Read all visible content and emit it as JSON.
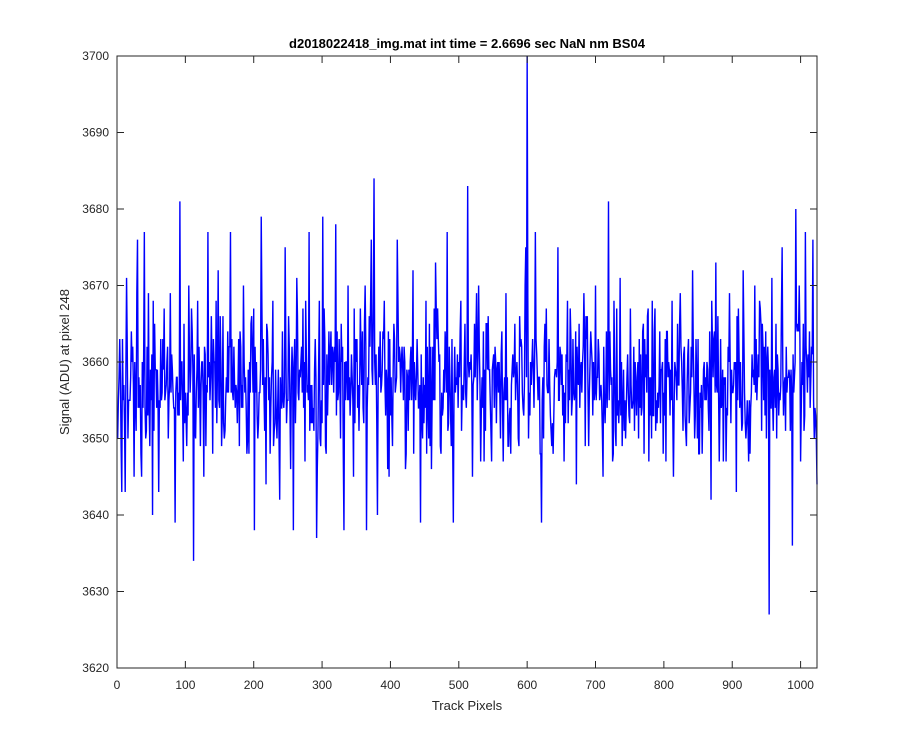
{
  "chart_data": {
    "type": "line",
    "title": "d2018022418_img.mat int time = 2.6696 sec  NaN nm BS04",
    "xlabel": "Track Pixels",
    "ylabel": "Signal (ADU) at pixel 248",
    "xlim": [
      0,
      1024
    ],
    "ylim": [
      3620,
      3700
    ],
    "xticks": [
      0,
      100,
      200,
      300,
      400,
      500,
      600,
      700,
      800,
      900,
      1000
    ],
    "yticks": [
      3620,
      3630,
      3640,
      3650,
      3660,
      3670,
      3680,
      3690,
      3700
    ],
    "grid": false,
    "series": [
      {
        "color": "#0000ff",
        "baseline": 3657,
        "noise_range": [
          3643,
          3672
        ],
        "x_start": 1,
        "x_end": 1024,
        "points": [
          [
            1,
            3650
          ],
          [
            4,
            3663
          ],
          [
            7,
            3643
          ],
          [
            10,
            3657
          ],
          [
            12,
            3643
          ],
          [
            14,
            3671
          ],
          [
            16,
            3650
          ],
          [
            21,
            3664
          ],
          [
            25,
            3645
          ],
          [
            29,
            3669
          ],
          [
            30,
            3676
          ],
          [
            35,
            3648
          ],
          [
            40,
            3677
          ],
          [
            42,
            3650
          ],
          [
            46,
            3669
          ],
          [
            52,
            3640
          ],
          [
            55,
            3665
          ],
          [
            61,
            3643
          ],
          [
            69,
            3667
          ],
          [
            75,
            3650
          ],
          [
            85,
            3639
          ],
          [
            92,
            3681
          ],
          [
            97,
            3647
          ],
          [
            105,
            3670
          ],
          [
            112,
            3634
          ],
          [
            118,
            3668
          ],
          [
            127,
            3645
          ],
          [
            133,
            3677
          ],
          [
            140,
            3648
          ],
          [
            148,
            3672
          ],
          [
            157,
            3650
          ],
          [
            166,
            3677
          ],
          [
            176,
            3652
          ],
          [
            185,
            3670
          ],
          [
            193,
            3648
          ],
          [
            201,
            3638
          ],
          [
            211,
            3679
          ],
          [
            218,
            3644
          ],
          [
            228,
            3668
          ],
          [
            238,
            3642
          ],
          [
            246,
            3675
          ],
          [
            258,
            3638
          ],
          [
            263,
            3671
          ],
          [
            275,
            3647
          ],
          [
            281,
            3677
          ],
          [
            292,
            3637
          ],
          [
            296,
            3668
          ],
          [
            301,
            3679
          ],
          [
            306,
            3648
          ],
          [
            320,
            3678
          ],
          [
            332,
            3638
          ],
          [
            338,
            3670
          ],
          [
            346,
            3645
          ],
          [
            356,
            3667
          ],
          [
            365,
            3638
          ],
          [
            372,
            3676
          ],
          [
            376,
            3684
          ],
          [
            381,
            3640
          ],
          [
            391,
            3668
          ],
          [
            398,
            3645
          ],
          [
            410,
            3676
          ],
          [
            422,
            3646
          ],
          [
            433,
            3672
          ],
          [
            444,
            3639
          ],
          [
            452,
            3668
          ],
          [
            460,
            3646
          ],
          [
            466,
            3673
          ],
          [
            474,
            3648
          ],
          [
            483,
            3677
          ],
          [
            492,
            3639
          ],
          [
            500,
            3660
          ],
          [
            513,
            3683
          ],
          [
            520,
            3645
          ],
          [
            529,
            3670
          ],
          [
            537,
            3647
          ],
          [
            550,
            3660
          ],
          [
            565,
            3647
          ],
          [
            577,
            3657
          ],
          [
            587,
            3650
          ],
          [
            597,
            3670
          ],
          [
            598,
            3675
          ],
          [
            600,
            3700
          ],
          [
            602,
            3650
          ],
          [
            605,
            3660
          ],
          [
            612,
            3677
          ],
          [
            619,
            3648
          ],
          [
            621,
            3639
          ],
          [
            628,
            3667
          ],
          [
            638,
            3648
          ],
          [
            645,
            3675
          ],
          [
            654,
            3647
          ],
          [
            663,
            3667
          ],
          [
            672,
            3644
          ],
          [
            683,
            3669
          ],
          [
            690,
            3649
          ],
          [
            700,
            3670
          ],
          [
            711,
            3645
          ],
          [
            719,
            3681
          ],
          [
            726,
            3648
          ],
          [
            736,
            3671
          ],
          [
            744,
            3650
          ],
          [
            751,
            3667
          ],
          [
            760,
            3653
          ],
          [
            770,
            3665
          ],
          [
            778,
            3647
          ],
          [
            787,
            3667
          ],
          [
            795,
            3652
          ],
          [
            805,
            3664
          ],
          [
            814,
            3645
          ],
          [
            824,
            3669
          ],
          [
            833,
            3649
          ],
          [
            842,
            3672
          ],
          [
            851,
            3648
          ],
          [
            859,
            3660
          ],
          [
            869,
            3642
          ],
          [
            876,
            3673
          ],
          [
            887,
            3647
          ],
          [
            896,
            3669
          ],
          [
            906,
            3643
          ],
          [
            916,
            3672
          ],
          [
            926,
            3648
          ],
          [
            933,
            3670
          ],
          [
            943,
            3651
          ],
          [
            951,
            3660
          ],
          [
            954,
            3627
          ],
          [
            958,
            3671
          ],
          [
            965,
            3650
          ],
          [
            973,
            3675
          ],
          [
            980,
            3656
          ],
          [
            988,
            3636
          ],
          [
            993,
            3680
          ],
          [
            1000,
            3647
          ],
          [
            1007,
            3677
          ],
          [
            1012,
            3658
          ],
          [
            1018,
            3676
          ],
          [
            1024,
            3644
          ]
        ]
      }
    ]
  }
}
